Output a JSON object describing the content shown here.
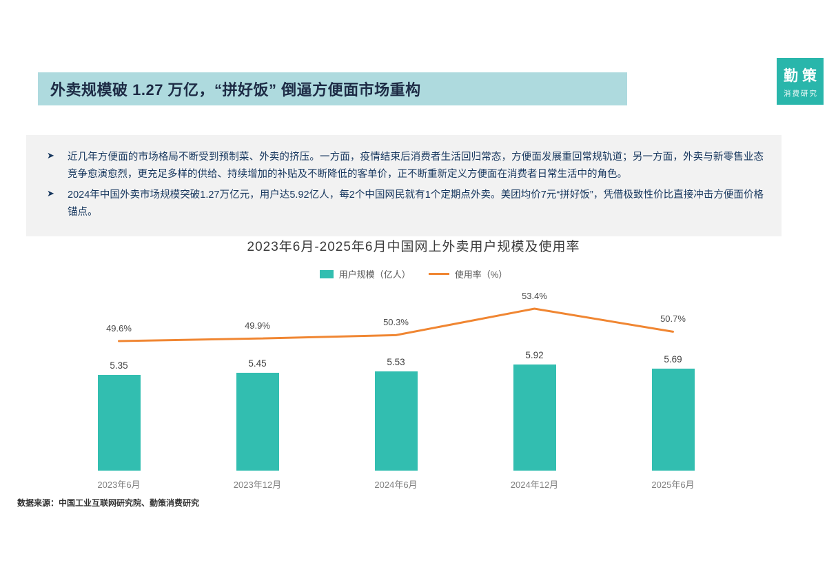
{
  "header": {
    "title": "外卖规模破 1.27 万亿，“拼好饭” 倒逼方便面市场重构"
  },
  "logo": {
    "line1": "勤策",
    "line2": "消费研究"
  },
  "bullets": [
    "近几年方便面的市场格局不断受到预制菜、外卖的挤压。一方面，疫情结束后消费者生活回归常态，方便面发展重回常规轨道；另一方面，外卖与新零售业态竞争愈演愈烈，更充足多样的供给、持续增加的补贴及不断降低的客单价，正不断重新定义方便面在消费者日常生活中的角色。",
    "2024年中国外卖市场规模突破1.27万亿元，用户达5.92亿人，每2个中国网民就有1个定期点外卖。美团均价7元“拼好饭”，凭借极致性价比直接冲击方便面价格锚点。"
  ],
  "chart_data": {
    "type": "bar+line",
    "title": "2023年6月-2025年6月中国网上外卖用户规模及使用率",
    "categories": [
      "2023年6月",
      "2023年12月",
      "2024年6月",
      "2024年12月",
      "2025年6月"
    ],
    "series": [
      {
        "name": "用户规模（亿人）",
        "type": "bar",
        "values": [
          5.35,
          5.45,
          5.53,
          5.92,
          5.69
        ],
        "color": "#32beb0"
      },
      {
        "name": "使用率（%）",
        "type": "line",
        "values": [
          49.6,
          49.9,
          50.3,
          53.4,
          50.7
        ],
        "color": "#f08632"
      }
    ],
    "legend_position": "top",
    "grid": false,
    "bar_label_suffix": "",
    "line_label_suffix": "%"
  },
  "footer": {
    "source": "数据来源：中国工业互联网研究院、勤策消费研究"
  },
  "colors": {
    "header_bg": "#aedade",
    "bar": "#32beb0",
    "line": "#f08632",
    "logo_bg": "#29b6ab",
    "bullet_text": "#17375e"
  }
}
